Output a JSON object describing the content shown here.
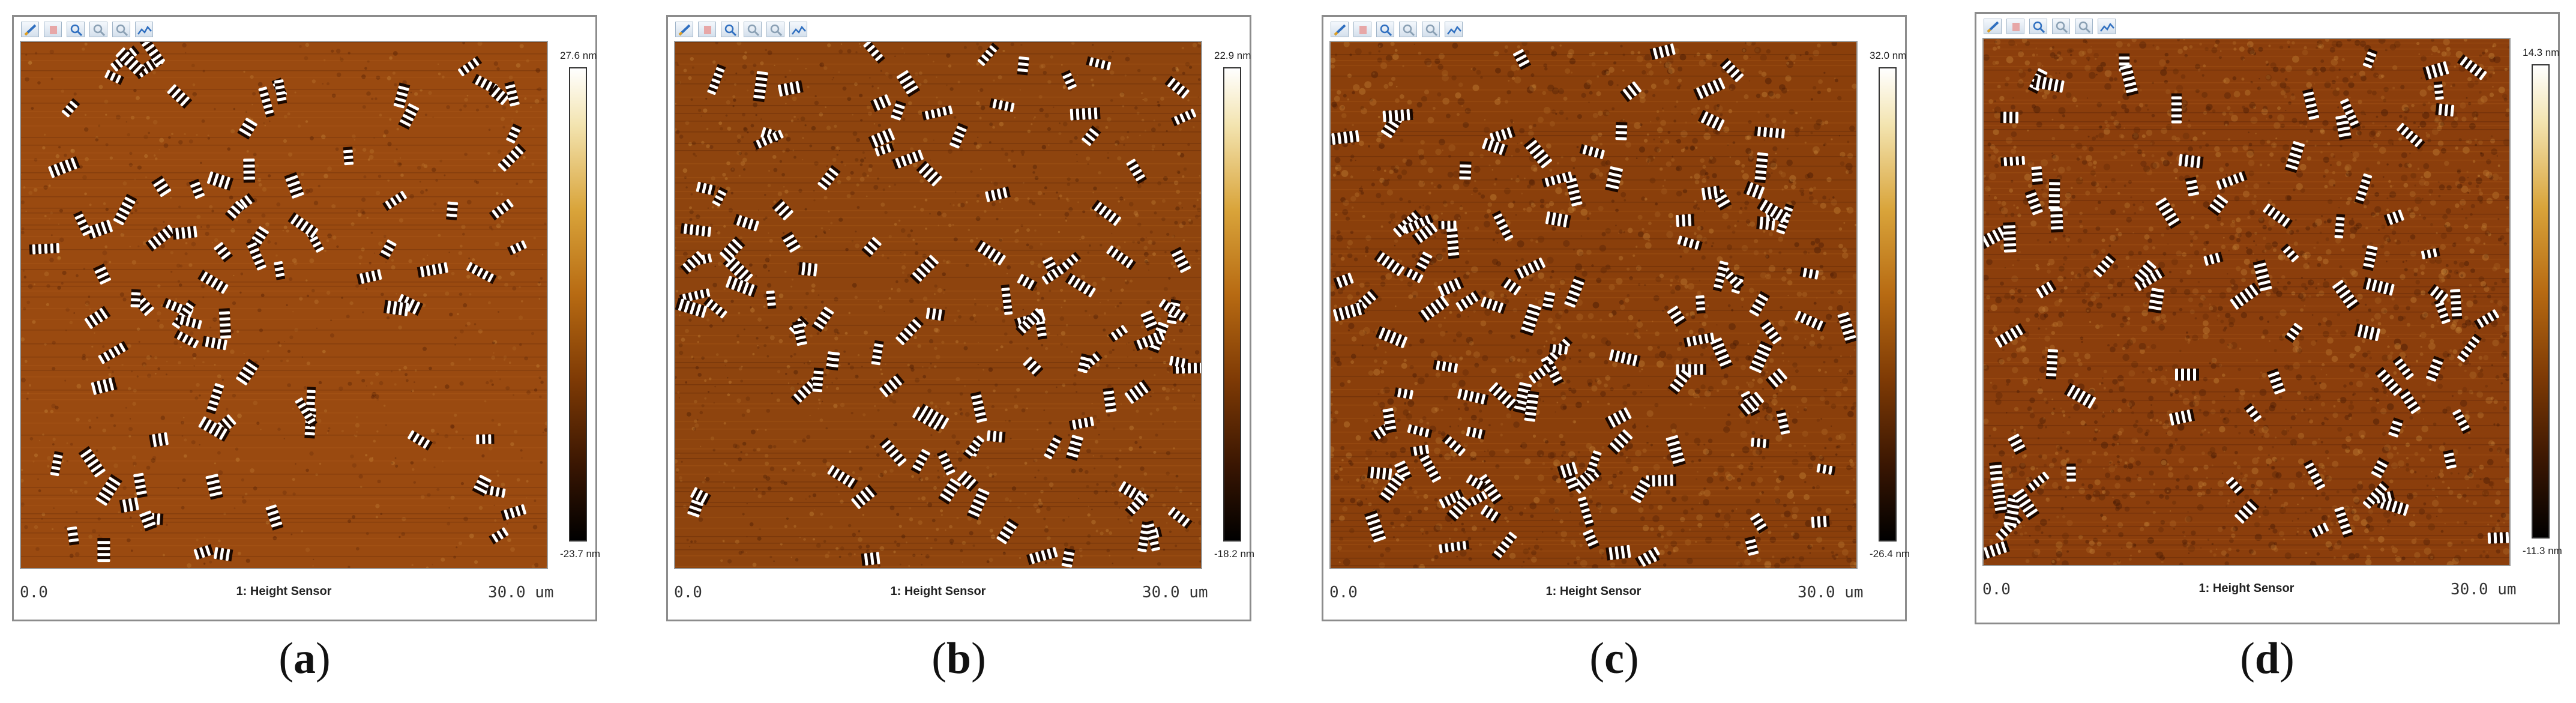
{
  "panels": [
    {
      "scale_max": "27.6 nm",
      "scale_min": "-23.7 nm",
      "axis_start": "0.0",
      "axis_end": "30.0 um",
      "channel": "1: Height Sensor",
      "caption_open": "(",
      "caption_letter": "a",
      "caption_close": ")",
      "colors": {
        "base": "#9a4a10",
        "dark": "#4a1a03",
        "light": "#ffffff"
      }
    },
    {
      "scale_max": "22.9 nm",
      "scale_min": "-18.2 nm",
      "axis_start": "0.0",
      "axis_end": "30.0 um",
      "channel": "1: Height Sensor",
      "caption_open": "(",
      "caption_letter": "b",
      "caption_close": ")",
      "colors": {
        "base": "#8e440e",
        "dark": "#3e1502",
        "light": "#ffffff"
      }
    },
    {
      "scale_max": "32.0 nm",
      "scale_min": "-26.4 nm",
      "axis_start": "0.0",
      "axis_end": "30.0 um",
      "channel": "1: Height Sensor",
      "caption_open": "(",
      "caption_letter": "c",
      "caption_close": ")",
      "colors": {
        "base": "#8a3f0b",
        "dark": "#3a1302",
        "light": "#ffffff"
      }
    },
    {
      "scale_max": "14.3 nm",
      "scale_min": "-11.3 nm",
      "axis_start": "0.0",
      "axis_end": "30.0 um",
      "channel": "1: Height Sensor",
      "caption_open": "(",
      "caption_letter": "d",
      "caption_close": ")",
      "colors": {
        "base": "#8b3e0c",
        "dark": "#3b1402",
        "light": "#ffffff"
      }
    }
  ],
  "toolbar_icons": [
    "pencil-icon",
    "eraser-icon",
    "zoom-icon",
    "zoom-in-icon",
    "zoom-out-icon",
    "profile-icon"
  ]
}
